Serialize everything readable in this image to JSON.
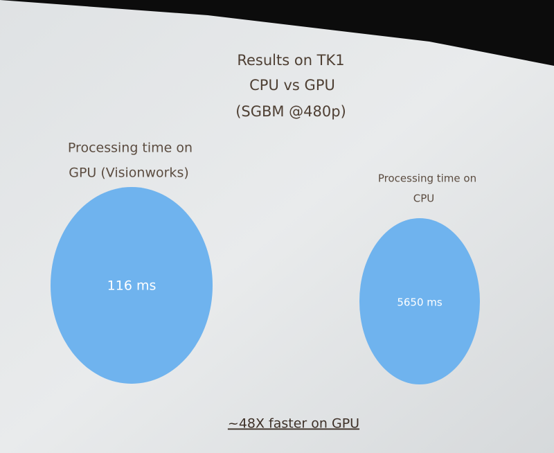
{
  "slide": {
    "title": [
      "Results on TK1",
      "CPU vs GPU",
      "(SGBM @480p)"
    ],
    "panels": [
      {
        "label_lines": [
          "Processing time on",
          "GPU (Visionworks)"
        ],
        "value": "116 ms"
      },
      {
        "label_lines": [
          "Processing time on",
          "CPU"
        ],
        "value": "5650 ms"
      }
    ],
    "footer": "~48X faster on GPU"
  }
}
